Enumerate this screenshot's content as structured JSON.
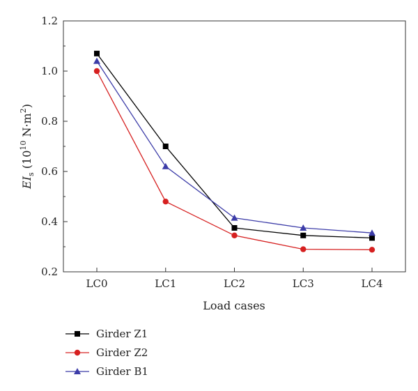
{
  "chart_data": {
    "type": "line",
    "categories": [
      "LC0",
      "LC1",
      "LC2",
      "LC3",
      "LC4"
    ],
    "series": [
      {
        "name": "Girder Z1",
        "values": [
          1.07,
          0.7,
          0.375,
          0.345,
          0.335
        ],
        "color": "#000000",
        "marker": "square"
      },
      {
        "name": "Girder Z2",
        "values": [
          1.0,
          0.48,
          0.345,
          0.29,
          0.288
        ],
        "color": "#d62020",
        "marker": "circle"
      },
      {
        "name": "Girder B1",
        "values": [
          1.04,
          0.62,
          0.415,
          0.375,
          0.355
        ],
        "color": "#3c3ca8",
        "marker": "triangle"
      }
    ],
    "ylim": [
      0.2,
      1.2
    ],
    "yticks": [
      "0.2",
      "0.4",
      "0.6",
      "0.8",
      "1.0",
      "1.2"
    ],
    "ytick_values": [
      0.2,
      0.4,
      0.6,
      0.8,
      1.0,
      1.2
    ],
    "xlabel": "Load cases",
    "ylabel": {
      "main": "EI",
      "sub": "s",
      "unit_open": " (10",
      "unit_exp": "10",
      "unit_mid": " N·m",
      "unit_exp2": "2",
      "unit_close": ")"
    },
    "legend_position": "bottom-left",
    "grid": false
  }
}
